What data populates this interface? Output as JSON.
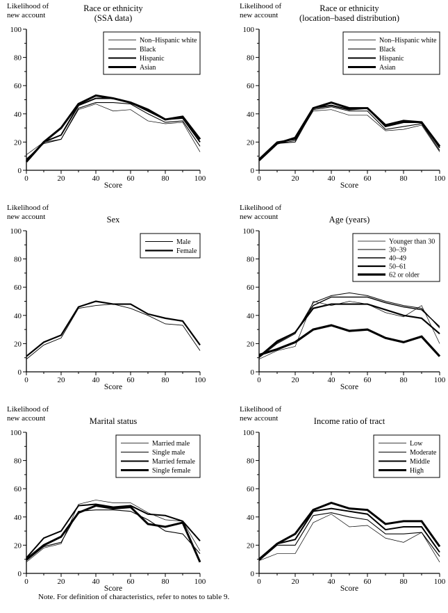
{
  "labels": {
    "ylabel_line1": "Likelihood of",
    "ylabel_line2": "new account",
    "note": "Note. For definition of characteristics, refer to notes to table 9."
  },
  "chart_data": [
    {
      "type": "line",
      "title": "Race or ethnicity",
      "subtitle": "(SSA data)",
      "xlabel": "Score",
      "ylabel": "Likelihood of new account",
      "xlim": [
        0,
        100
      ],
      "ylim": [
        0,
        100
      ],
      "xticks": [
        0,
        20,
        40,
        60,
        80,
        100
      ],
      "yticks": [
        0,
        20,
        40,
        60,
        80,
        100
      ],
      "minor_tick_step": 10,
      "grid": false,
      "legend_position": "top-right",
      "x": [
        0,
        10,
        20,
        30,
        40,
        50,
        60,
        70,
        80,
        90,
        100
      ],
      "series": [
        {
          "name": "Non–Hispanic white",
          "lw": 0.7,
          "values": [
            11,
            20,
            22,
            43,
            47,
            42,
            43,
            35,
            33,
            34,
            13
          ]
        },
        {
          "name": "Black",
          "lw": 1.1,
          "values": [
            8,
            19,
            22,
            44,
            48,
            48,
            47,
            40,
            34,
            35,
            17
          ]
        },
        {
          "name": "Hispanic",
          "lw": 2.0,
          "values": [
            7,
            20,
            25,
            46,
            51,
            51,
            48,
            42,
            36,
            37,
            20
          ]
        },
        {
          "name": "Asian",
          "lw": 3.0,
          "values": [
            6,
            20,
            30,
            47,
            53,
            51,
            48,
            43,
            36,
            38,
            22
          ]
        }
      ]
    },
    {
      "type": "line",
      "title": "Race or ethnicity",
      "subtitle": "(location–based distribution)",
      "xlabel": "Score",
      "ylabel": "Likelihood of new account",
      "xlim": [
        0,
        100
      ],
      "ylim": [
        0,
        100
      ],
      "xticks": [
        0,
        20,
        40,
        60,
        80,
        100
      ],
      "yticks": [
        0,
        20,
        40,
        60,
        80,
        100
      ],
      "minor_tick_step": 10,
      "grid": false,
      "legend_position": "top-right",
      "x": [
        0,
        10,
        20,
        30,
        40,
        50,
        60,
        70,
        80,
        90,
        100
      ],
      "series": [
        {
          "name": "Non–Hispanic white",
          "lw": 0.7,
          "values": [
            8,
            19,
            21,
            42,
            43,
            39,
            39,
            28,
            29,
            32,
            13
          ]
        },
        {
          "name": "Black",
          "lw": 1.1,
          "values": [
            8,
            19,
            20,
            43,
            45,
            42,
            42,
            29,
            31,
            33,
            14
          ]
        },
        {
          "name": "Hispanic",
          "lw": 2.0,
          "values": [
            8,
            20,
            22,
            44,
            46,
            43,
            44,
            31,
            34,
            34,
            16
          ]
        },
        {
          "name": "Asian",
          "lw": 3.0,
          "values": [
            7,
            19,
            23,
            44,
            48,
            44,
            44,
            32,
            35,
            34,
            17
          ]
        }
      ]
    },
    {
      "type": "line",
      "title": "Sex",
      "subtitle": "",
      "xlabel": "Score",
      "ylabel": "Likelihood of new account",
      "xlim": [
        0,
        100
      ],
      "ylim": [
        0,
        100
      ],
      "xticks": [
        0,
        20,
        40,
        60,
        80,
        100
      ],
      "yticks": [
        0,
        20,
        40,
        60,
        80,
        100
      ],
      "minor_tick_step": 10,
      "grid": false,
      "legend_position": "top-right",
      "x": [
        0,
        10,
        20,
        30,
        40,
        50,
        60,
        70,
        80,
        90,
        100
      ],
      "series": [
        {
          "name": "Male",
          "lw": 0.9,
          "values": [
            9,
            19,
            24,
            45,
            47,
            48,
            45,
            40,
            34,
            33,
            15
          ]
        },
        {
          "name": "Female",
          "lw": 2.2,
          "values": [
            11,
            21,
            26,
            46,
            50,
            48,
            48,
            41,
            38,
            36,
            19
          ]
        }
      ]
    },
    {
      "type": "line",
      "title": "Age (years)",
      "subtitle": "",
      "xlabel": "Score",
      "ylabel": "Likelihood of new account",
      "xlim": [
        0,
        100
      ],
      "ylim": [
        0,
        100
      ],
      "xticks": [
        0,
        20,
        40,
        60,
        80,
        100
      ],
      "yticks": [
        0,
        20,
        40,
        60,
        80,
        100
      ],
      "minor_tick_step": 10,
      "grid": false,
      "legend_position": "top-right",
      "x": [
        0,
        10,
        20,
        30,
        40,
        50,
        60,
        70,
        80,
        90,
        100
      ],
      "series": [
        {
          "name": "Younger than 30",
          "lw": 0.7,
          "values": [
            9,
            15,
            18,
            50,
            47,
            50,
            48,
            42,
            39,
            47,
            20
          ]
        },
        {
          "name": "30–39",
          "lw": 1.0,
          "values": [
            10,
            20,
            27,
            49,
            54,
            56,
            54,
            50,
            47,
            45,
            31
          ]
        },
        {
          "name": "40–49",
          "lw": 1.4,
          "values": [
            11,
            22,
            28,
            47,
            53,
            53,
            53,
            49,
            46,
            44,
            32
          ]
        },
        {
          "name": "50–61",
          "lw": 2.2,
          "values": [
            11,
            21,
            28,
            45,
            48,
            48,
            48,
            44,
            40,
            38,
            27
          ]
        },
        {
          "name": "62 or older",
          "lw": 3.2,
          "values": [
            12,
            16,
            21,
            30,
            33,
            29,
            30,
            24,
            21,
            25,
            11
          ]
        }
      ]
    },
    {
      "type": "line",
      "title": "Marital status",
      "subtitle": "",
      "xlabel": "Score",
      "ylabel": "Likelihood of new account",
      "xlim": [
        0,
        100
      ],
      "ylim": [
        0,
        100
      ],
      "xticks": [
        0,
        20,
        40,
        60,
        80,
        100
      ],
      "yticks": [
        0,
        20,
        40,
        60,
        80,
        100
      ],
      "minor_tick_step": 10,
      "grid": false,
      "legend_position": "top-right",
      "x": [
        0,
        10,
        20,
        30,
        40,
        50,
        60,
        70,
        80,
        90,
        100
      ],
      "series": [
        {
          "name": "Married male",
          "lw": 0.7,
          "values": [
            8,
            18,
            21,
            49,
            52,
            50,
            50,
            43,
            38,
            37,
            16
          ]
        },
        {
          "name": "Single male",
          "lw": 1.1,
          "values": [
            9,
            19,
            22,
            44,
            45,
            45,
            44,
            38,
            30,
            28,
            14
          ]
        },
        {
          "name": "Married female",
          "lw": 2.0,
          "values": [
            11,
            25,
            30,
            48,
            49,
            47,
            48,
            42,
            41,
            37,
            23
          ]
        },
        {
          "name": "Single female",
          "lw": 3.0,
          "values": [
            10,
            20,
            26,
            43,
            48,
            46,
            47,
            35,
            33,
            36,
            8
          ]
        }
      ]
    },
    {
      "type": "line",
      "title": "Income ratio of tract",
      "subtitle": "",
      "xlabel": "Score",
      "ylabel": "Likelihood of new account",
      "xlim": [
        0,
        100
      ],
      "ylim": [
        0,
        100
      ],
      "xticks": [
        0,
        20,
        40,
        60,
        80,
        100
      ],
      "yticks": [
        0,
        20,
        40,
        60,
        80,
        100
      ],
      "minor_tick_step": 10,
      "grid": false,
      "legend_position": "top-right",
      "x": [
        0,
        10,
        20,
        30,
        40,
        50,
        60,
        70,
        80,
        90,
        100
      ],
      "series": [
        {
          "name": "Low",
          "lw": 0.7,
          "values": [
            9,
            14,
            14,
            36,
            42,
            33,
            34,
            25,
            22,
            29,
            8
          ]
        },
        {
          "name": "Moderate",
          "lw": 1.1,
          "values": [
            9,
            20,
            20,
            41,
            43,
            40,
            38,
            28,
            28,
            29,
            12
          ]
        },
        {
          "name": "Middle",
          "lw": 2.0,
          "values": [
            10,
            21,
            24,
            44,
            46,
            44,
            42,
            31,
            33,
            33,
            15
          ]
        },
        {
          "name": "High",
          "lw": 3.0,
          "values": [
            10,
            21,
            28,
            45,
            50,
            46,
            45,
            35,
            37,
            37,
            19
          ]
        }
      ]
    }
  ]
}
